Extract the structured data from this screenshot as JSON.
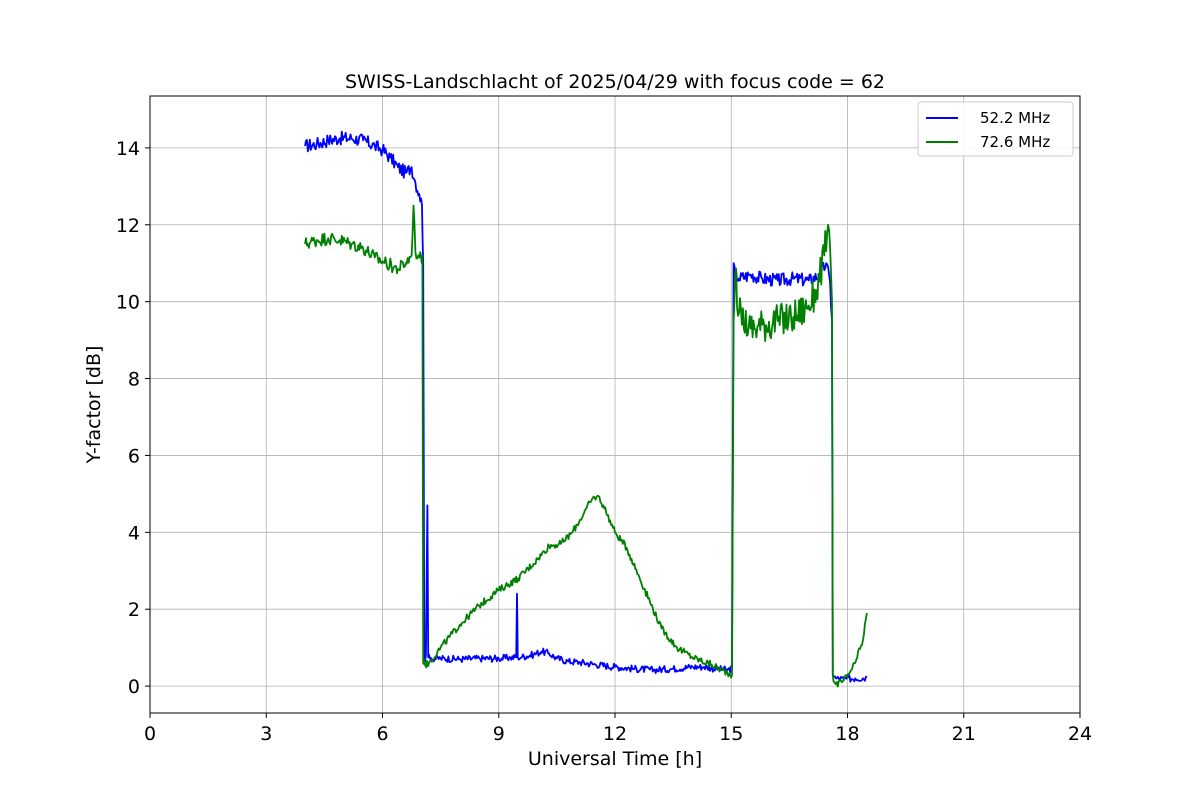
{
  "chart_data": {
    "type": "line",
    "title": "SWISS-Landschlacht of 2025/04/29 with focus code = 62",
    "xlabel": "Universal Time [h]",
    "ylabel": "Y-factor [dB]",
    "xlim": [
      0,
      24
    ],
    "ylim": [
      -0.7,
      15.35
    ],
    "xticks": [
      0,
      3,
      6,
      9,
      12,
      15,
      18,
      21,
      24
    ],
    "yticks": [
      0,
      2,
      4,
      6,
      8,
      10,
      12,
      14
    ],
    "grid": true,
    "legend_position": "top-right",
    "series": [
      {
        "name": "52.2 MHz",
        "color": "#0000ff",
        "x": [
          4.0,
          4.3,
          4.6,
          4.9,
          5.2,
          5.5,
          5.8,
          6.0,
          6.2,
          6.4,
          6.6,
          6.75,
          6.85,
          6.95,
          7.02,
          7.05,
          7.08,
          7.12,
          7.16,
          7.18,
          7.22,
          7.5,
          8.0,
          8.5,
          9.0,
          9.3,
          9.45,
          9.47,
          9.49,
          9.6,
          9.9,
          10.1,
          10.3,
          10.5,
          10.8,
          11.1,
          11.5,
          12.0,
          12.5,
          13.0,
          13.5,
          14.0,
          14.3,
          14.6,
          14.9,
          15.02,
          15.06,
          15.1,
          15.2,
          15.5,
          15.8,
          16.2,
          16.6,
          17.0,
          17.3,
          17.45,
          17.55,
          17.6,
          17.62,
          17.66,
          17.7,
          17.9,
          18.2,
          18.5
        ],
        "values": [
          14.05,
          14.1,
          14.2,
          14.25,
          14.25,
          14.2,
          14.05,
          13.95,
          13.75,
          13.5,
          13.35,
          13.5,
          13.1,
          12.8,
          12.5,
          11.0,
          0.6,
          0.8,
          4.7,
          0.75,
          0.72,
          0.72,
          0.7,
          0.72,
          0.72,
          0.74,
          0.75,
          2.4,
          0.75,
          0.76,
          0.82,
          0.9,
          0.85,
          0.72,
          0.64,
          0.62,
          0.56,
          0.5,
          0.45,
          0.42,
          0.45,
          0.5,
          0.5,
          0.45,
          0.42,
          0.45,
          11.0,
          10.7,
          10.6,
          10.7,
          10.6,
          10.55,
          10.6,
          10.55,
          10.7,
          11.0,
          10.5,
          9.5,
          0.3,
          0.25,
          0.2,
          0.18,
          0.2,
          0.22
        ]
      },
      {
        "name": "72.6 MHz",
        "color": "#008000",
        "x": [
          4.0,
          4.3,
          4.6,
          4.9,
          5.2,
          5.5,
          5.8,
          6.1,
          6.4,
          6.6,
          6.75,
          6.8,
          6.85,
          6.95,
          7.0,
          7.03,
          7.05,
          7.07,
          7.1,
          7.2,
          7.5,
          8.0,
          8.5,
          9.0,
          9.5,
          10.0,
          10.3,
          10.6,
          10.9,
          11.2,
          11.4,
          11.55,
          11.7,
          12.0,
          12.3,
          12.6,
          12.9,
          13.2,
          13.6,
          14.0,
          14.5,
          14.9,
          15.02,
          15.06,
          15.1,
          15.2,
          15.5,
          15.8,
          16.2,
          16.6,
          17.0,
          17.2,
          17.4,
          17.5,
          17.55,
          17.6,
          17.62,
          17.66,
          17.7,
          17.85,
          18.0,
          18.2,
          18.4,
          18.5
        ],
        "values": [
          11.5,
          11.6,
          11.65,
          11.6,
          11.5,
          11.4,
          11.15,
          11.0,
          10.85,
          11.0,
          11.2,
          12.5,
          11.3,
          11.15,
          11.1,
          11.2,
          0.6,
          0.7,
          0.55,
          0.6,
          1.0,
          1.6,
          2.1,
          2.5,
          2.8,
          3.3,
          3.65,
          3.7,
          4.0,
          4.5,
          4.85,
          4.95,
          4.7,
          4.0,
          3.6,
          2.9,
          2.2,
          1.5,
          1.0,
          0.75,
          0.55,
          0.35,
          0.3,
          9.5,
          10.7,
          9.7,
          9.3,
          9.4,
          9.5,
          9.6,
          9.9,
          10.3,
          11.2,
          12.0,
          11.4,
          10.0,
          0.3,
          0.1,
          0.05,
          0.1,
          0.25,
          0.6,
          1.2,
          1.9
        ]
      }
    ]
  }
}
